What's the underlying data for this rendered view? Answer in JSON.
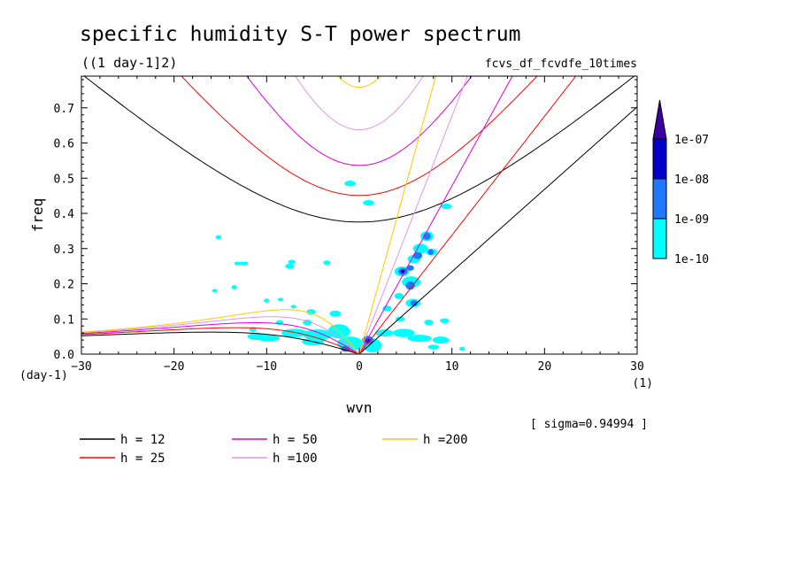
{
  "chart_data": {
    "type": "heatmap",
    "title": "specific humidity S-T power spectrum",
    "subtitle": "((1 day-1]2)",
    "run_label": "fcvs_df_fcvdfe_10times",
    "xlabel": "wvn",
    "ylabel": "freq",
    "x_unit": "(1)",
    "y_unit": "(day-1)",
    "xlim": [
      -30,
      30
    ],
    "ylim": [
      0,
      0.79
    ],
    "xticks": [
      -30,
      -20,
      -10,
      0,
      10,
      20,
      30
    ],
    "yticks": [
      0.0,
      0.1,
      0.2,
      0.3,
      0.4,
      0.5,
      0.6,
      0.7
    ],
    "sigma_label": "[ sigma=0.94994 ]",
    "colorbar": {
      "levels": [
        "1e-10",
        "1e-09",
        "1e-08",
        "1e-07"
      ],
      "colors": [
        "#00ffff",
        "#1e78ff",
        "#0000c8",
        "#3c00a0"
      ]
    },
    "dispersion_curves": [
      {
        "label": "h = 12",
        "h": 12,
        "color": "#000000"
      },
      {
        "label": "h = 25",
        "h": 25,
        "color": "#ff0000"
      },
      {
        "label": "h = 50",
        "h": 50,
        "color": "#dd00dd"
      },
      {
        "label": "h =100",
        "h": 100,
        "color": "#dd99dd"
      },
      {
        "label": "h =200",
        "h": 200,
        "color": "#ffc800"
      }
    ],
    "power_patches": [
      {
        "x": 1,
        "y": 0.43,
        "rx": 0.6,
        "ry": 0.008,
        "level": 0
      },
      {
        "x": -1,
        "y": 0.485,
        "rx": 0.6,
        "ry": 0.008,
        "level": 0
      },
      {
        "x": 9.4,
        "y": 0.42,
        "rx": 0.6,
        "ry": 0.008,
        "level": 0
      },
      {
        "x": -15.2,
        "y": 0.332,
        "rx": 0.3,
        "ry": 0.006,
        "level": 0
      },
      {
        "x": -7.5,
        "y": 0.25,
        "rx": 0.5,
        "ry": 0.007,
        "level": 0
      },
      {
        "x": -13.2,
        "y": 0.258,
        "rx": 0.3,
        "ry": 0.005,
        "level": 0
      },
      {
        "x": -12.3,
        "y": 0.258,
        "rx": 0.3,
        "ry": 0.005,
        "level": 0
      },
      {
        "x": -7.3,
        "y": 0.262,
        "rx": 0.4,
        "ry": 0.006,
        "level": 0
      },
      {
        "x": -3.5,
        "y": 0.26,
        "rx": 0.4,
        "ry": 0.006,
        "level": 0
      },
      {
        "x": -12.7,
        "y": 0.258,
        "rx": 0.3,
        "ry": 0.005,
        "level": 0
      },
      {
        "x": -13.5,
        "y": 0.19,
        "rx": 0.3,
        "ry": 0.006,
        "level": 0
      },
      {
        "x": -15.6,
        "y": 0.18,
        "rx": 0.3,
        "ry": 0.005,
        "level": 0
      },
      {
        "x": -10,
        "y": 0.152,
        "rx": 0.3,
        "ry": 0.006,
        "level": 0
      },
      {
        "x": -8.5,
        "y": 0.155,
        "rx": 0.3,
        "ry": 0.005,
        "level": 0
      },
      {
        "x": -7.1,
        "y": 0.135,
        "rx": 0.3,
        "ry": 0.005,
        "level": 0
      },
      {
        "x": -5.2,
        "y": 0.12,
        "rx": 0.5,
        "ry": 0.008,
        "level": 0
      },
      {
        "x": -2.6,
        "y": 0.115,
        "rx": 0.6,
        "ry": 0.009,
        "level": 0
      },
      {
        "x": -5.6,
        "y": 0.09,
        "rx": 0.5,
        "ry": 0.008,
        "level": 0
      },
      {
        "x": -8.6,
        "y": 0.09,
        "rx": 0.4,
        "ry": 0.007,
        "level": 0
      },
      {
        "x": -11.5,
        "y": 0.07,
        "rx": 0.4,
        "ry": 0.007,
        "level": 0
      },
      {
        "x": -7,
        "y": 0.06,
        "rx": 1.4,
        "ry": 0.012,
        "level": 0
      },
      {
        "x": -4.5,
        "y": 0.055,
        "rx": 1.6,
        "ry": 0.015,
        "level": 0
      },
      {
        "x": -2.2,
        "y": 0.065,
        "rx": 1.2,
        "ry": 0.02,
        "level": 0
      },
      {
        "x": -1,
        "y": 0.03,
        "rx": 1.4,
        "ry": 0.02,
        "level": 0
      },
      {
        "x": -11,
        "y": 0.05,
        "rx": 1.1,
        "ry": 0.01,
        "level": 0
      },
      {
        "x": -9.8,
        "y": 0.045,
        "rx": 1.2,
        "ry": 0.009,
        "level": 0
      },
      {
        "x": -5,
        "y": 0.035,
        "rx": 1.2,
        "ry": 0.01,
        "level": 0
      },
      {
        "x": 1.4,
        "y": 0.025,
        "rx": 1,
        "ry": 0.02,
        "level": 0
      },
      {
        "x": 2.7,
        "y": 0.06,
        "rx": 1,
        "ry": 0.01,
        "level": 0
      },
      {
        "x": 3,
        "y": 0.13,
        "rx": 0.5,
        "ry": 0.008,
        "level": 0
      },
      {
        "x": 4.4,
        "y": 0.1,
        "rx": 0.5,
        "ry": 0.007,
        "level": 0
      },
      {
        "x": 4.8,
        "y": 0.06,
        "rx": 1.2,
        "ry": 0.012,
        "level": 0
      },
      {
        "x": 6.5,
        "y": 0.045,
        "rx": 1.3,
        "ry": 0.01,
        "level": 0
      },
      {
        "x": 8.8,
        "y": 0.04,
        "rx": 0.9,
        "ry": 0.01,
        "level": 0
      },
      {
        "x": 9.2,
        "y": 0.095,
        "rx": 0.5,
        "ry": 0.007,
        "level": 0
      },
      {
        "x": 11.1,
        "y": 0.015,
        "rx": 0.3,
        "ry": 0.006,
        "level": 0
      },
      {
        "x": 8,
        "y": 0.02,
        "rx": 0.6,
        "ry": 0.007,
        "level": 0
      },
      {
        "x": 5.6,
        "y": 0.205,
        "rx": 1,
        "ry": 0.016,
        "level": 0
      },
      {
        "x": 4.6,
        "y": 0.235,
        "rx": 0.8,
        "ry": 0.014,
        "level": 0
      },
      {
        "x": 6.6,
        "y": 0.3,
        "rx": 0.8,
        "ry": 0.014,
        "level": 0
      },
      {
        "x": 5.9,
        "y": 0.27,
        "rx": 0.7,
        "ry": 0.012,
        "level": 0
      },
      {
        "x": 7.3,
        "y": 0.335,
        "rx": 0.7,
        "ry": 0.014,
        "level": 0
      },
      {
        "x": 7.8,
        "y": 0.29,
        "rx": 0.6,
        "ry": 0.01,
        "level": 0
      },
      {
        "x": 5.8,
        "y": 0.145,
        "rx": 0.8,
        "ry": 0.012,
        "level": 0
      },
      {
        "x": 4.3,
        "y": 0.165,
        "rx": 0.5,
        "ry": 0.009,
        "level": 0
      },
      {
        "x": 7.5,
        "y": 0.09,
        "rx": 0.5,
        "ry": 0.008,
        "level": 0
      },
      {
        "x": 5.5,
        "y": 0.195,
        "rx": 0.5,
        "ry": 0.012,
        "level": 1
      },
      {
        "x": 4.7,
        "y": 0.235,
        "rx": 0.5,
        "ry": 0.01,
        "level": 1
      },
      {
        "x": 5.5,
        "y": 0.245,
        "rx": 0.4,
        "ry": 0.008,
        "level": 1
      },
      {
        "x": 6.3,
        "y": 0.28,
        "rx": 0.5,
        "ry": 0.01,
        "level": 1
      },
      {
        "x": 7.3,
        "y": 0.335,
        "rx": 0.4,
        "ry": 0.01,
        "level": 1
      },
      {
        "x": 7.7,
        "y": 0.29,
        "rx": 0.3,
        "ry": 0.008,
        "level": 1
      },
      {
        "x": 5.9,
        "y": 0.145,
        "rx": 0.4,
        "ry": 0.008,
        "level": 1
      },
      {
        "x": 0.9,
        "y": 0.04,
        "rx": 0.6,
        "ry": 0.012,
        "level": 1
      },
      {
        "x": -1.5,
        "y": 0.015,
        "rx": 0.5,
        "ry": 0.008,
        "level": 1
      },
      {
        "x": 4.7,
        "y": 0.235,
        "rx": 0.25,
        "ry": 0.005,
        "level": 2
      },
      {
        "x": 0.9,
        "y": 0.038,
        "rx": 0.3,
        "ry": 0.006,
        "level": 2
      }
    ]
  }
}
